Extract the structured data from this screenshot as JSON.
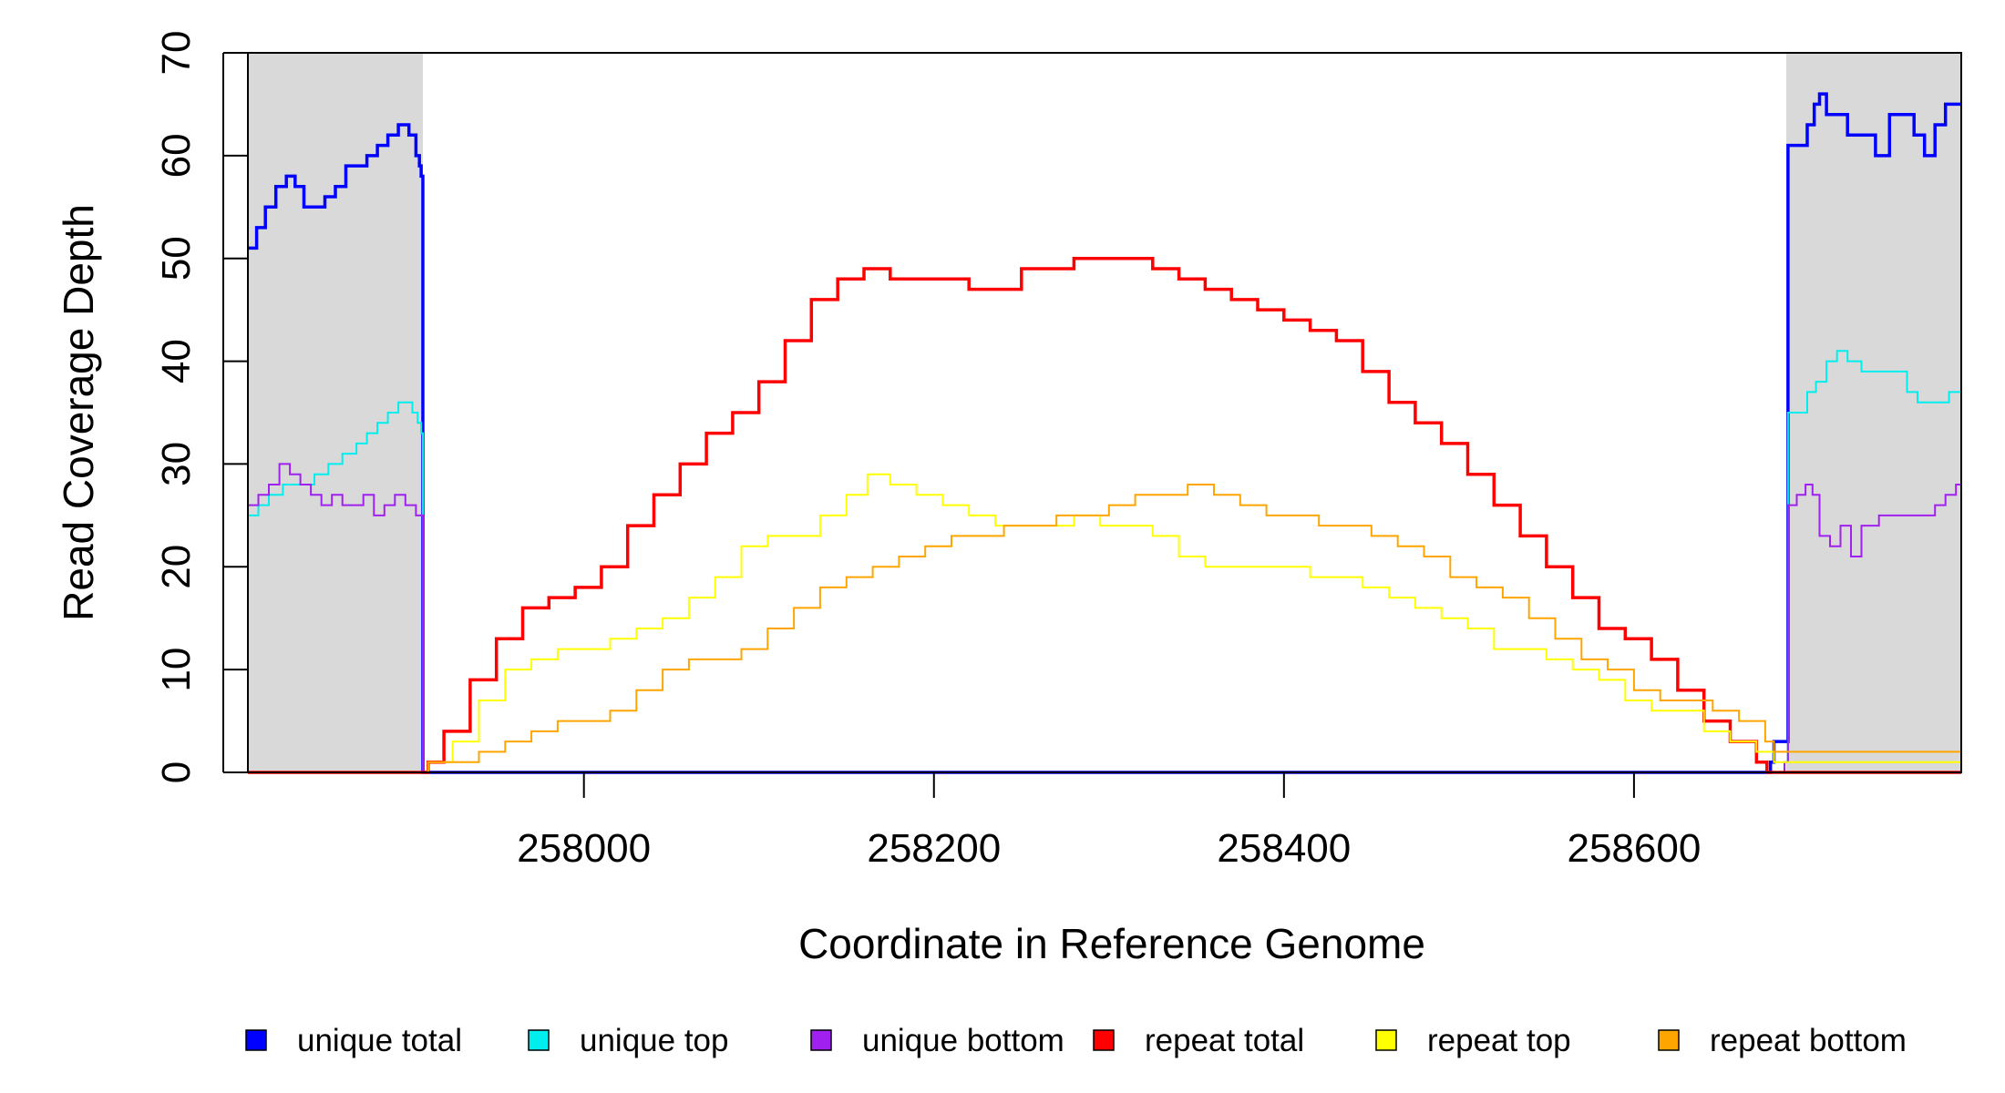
{
  "chart_data": {
    "type": "line",
    "title": "",
    "xlabel": "Coordinate in Reference Genome",
    "ylabel": "Read Coverage Depth",
    "xlim": [
      257808,
      258787
    ],
    "ylim": [
      0,
      70
    ],
    "xticks": [
      258000,
      258200,
      258400,
      258600
    ],
    "xtick_labels": [
      "258000",
      "258200",
      "258400",
      "258600"
    ],
    "yticks": [
      0,
      10,
      20,
      30,
      40,
      50,
      60,
      70
    ],
    "ytick_labels": [
      "0",
      "10",
      "20",
      "30",
      "40",
      "50",
      "60",
      "70"
    ],
    "grid": false,
    "legend_position": "bottom",
    "shaded_regions": [
      {
        "x0": 257808,
        "x1": 257908,
        "color": "#d9d9d9"
      },
      {
        "x0": 258687,
        "x1": 258787,
        "color": "#d9d9d9"
      }
    ],
    "series": [
      {
        "name": "unique total",
        "color": "#0000ff",
        "line_width": 3.5,
        "x": [
          257808,
          257813,
          257818,
          257824,
          257830,
          257835,
          257840,
          257846,
          257852,
          257858,
          257864,
          257870,
          257876,
          257882,
          257888,
          257894,
          257900,
          257904,
          257906,
          257907,
          257908,
          257910,
          258000,
          258200,
          258400,
          258600,
          258676,
          258678,
          258680,
          258686,
          258688,
          258693,
          258699,
          258703,
          258706,
          258710,
          258716,
          258722,
          258730,
          258738,
          258746,
          258752,
          258760,
          258766,
          258772,
          258778,
          258787
        ],
        "y": [
          51,
          53,
          55,
          57,
          58,
          57,
          55,
          55,
          56,
          57,
          59,
          59,
          60,
          61,
          62,
          63,
          62,
          60,
          59,
          58,
          0,
          0,
          0,
          0,
          0,
          0,
          0,
          1,
          3,
          3,
          61,
          61,
          63,
          65,
          66,
          64,
          64,
          62,
          62,
          60,
          64,
          64,
          62,
          60,
          63,
          65,
          65
        ]
      },
      {
        "name": "unique top",
        "color": "#00eeee",
        "line_width": 2,
        "x": [
          257808,
          257814,
          257820,
          257828,
          257838,
          257846,
          257854,
          257862,
          257870,
          257876,
          257882,
          257888,
          257894,
          257898,
          257902,
          257905,
          257907,
          257908,
          257910,
          258600,
          258676,
          258686,
          258688,
          258693,
          258699,
          258704,
          258710,
          258716,
          258722,
          258730,
          258740,
          258750,
          258756,
          258762,
          258768,
          258774,
          258780,
          258787
        ],
        "y": [
          25,
          26,
          27,
          28,
          28,
          29,
          30,
          31,
          32,
          33,
          34,
          35,
          36,
          36,
          35,
          34,
          33,
          0,
          0,
          0,
          0,
          1,
          35,
          35,
          37,
          38,
          40,
          41,
          40,
          39,
          39,
          39,
          37,
          36,
          36,
          36,
          37,
          36
        ]
      },
      {
        "name": "unique bottom",
        "color": "#a020f0",
        "line_width": 2,
        "x": [
          257808,
          257814,
          257820,
          257826,
          257832,
          257838,
          257844,
          257850,
          257856,
          257862,
          257868,
          257874,
          257880,
          257886,
          257892,
          257898,
          257904,
          257907,
          257908,
          257910,
          258600,
          258676,
          258686,
          258688,
          258693,
          258698,
          258702,
          258706,
          258712,
          258718,
          258724,
          258730,
          258740,
          258750,
          258760,
          258766,
          258772,
          258778,
          258784,
          258787
        ],
        "y": [
          26,
          27,
          28,
          30,
          29,
          28,
          27,
          26,
          27,
          26,
          26,
          27,
          25,
          26,
          27,
          26,
          25,
          25,
          0,
          0,
          0,
          0,
          1,
          26,
          27,
          28,
          27,
          23,
          22,
          24,
          21,
          24,
          25,
          25,
          25,
          25,
          26,
          27,
          28,
          29
        ]
      },
      {
        "name": "repeat total",
        "color": "#ff0000",
        "line_width": 3.5,
        "x": [
          257808,
          257908,
          257911,
          257920,
          257935,
          257950,
          257965,
          257980,
          257995,
          258010,
          258025,
          258040,
          258055,
          258070,
          258085,
          258100,
          258115,
          258130,
          258145,
          258160,
          258175,
          258190,
          258205,
          258220,
          258235,
          258250,
          258265,
          258280,
          258295,
          258310,
          258325,
          258340,
          258355,
          258370,
          258385,
          258400,
          258415,
          258430,
          258445,
          258460,
          258475,
          258490,
          258505,
          258520,
          258535,
          258550,
          258565,
          258580,
          258595,
          258610,
          258625,
          258640,
          258655,
          258670,
          258676,
          258680,
          258787
        ],
        "y": [
          0,
          0,
          1,
          4,
          9,
          13,
          16,
          17,
          18,
          20,
          24,
          27,
          30,
          33,
          35,
          38,
          42,
          46,
          48,
          49,
          48,
          48,
          48,
          47,
          47,
          49,
          49,
          50,
          50,
          50,
          49,
          48,
          47,
          46,
          45,
          44,
          43,
          42,
          39,
          36,
          34,
          32,
          29,
          26,
          23,
          20,
          17,
          14,
          13,
          11,
          8,
          5,
          3,
          1,
          0,
          0,
          0
        ]
      },
      {
        "name": "repeat top",
        "color": "#ffff00",
        "line_width": 2,
        "x": [
          257808,
          257908,
          257911,
          257925,
          257940,
          257955,
          257970,
          257985,
          258000,
          258015,
          258030,
          258045,
          258060,
          258075,
          258090,
          258105,
          258120,
          258135,
          258150,
          258162,
          258175,
          258190,
          258205,
          258220,
          258235,
          258250,
          258265,
          258280,
          258295,
          258310,
          258325,
          258340,
          258355,
          258370,
          258385,
          258400,
          258415,
          258430,
          258445,
          258460,
          258475,
          258490,
          258505,
          258520,
          258535,
          258550,
          258565,
          258580,
          258595,
          258610,
          258625,
          258640,
          258655,
          258670,
          258680,
          258787
        ],
        "y": [
          0,
          0,
          1,
          3,
          7,
          10,
          11,
          12,
          12,
          13,
          14,
          15,
          17,
          19,
          22,
          23,
          23,
          25,
          27,
          29,
          28,
          27,
          26,
          25,
          24,
          24,
          24,
          25,
          24,
          24,
          23,
          21,
          20,
          20,
          20,
          20,
          19,
          19,
          18,
          17,
          16,
          15,
          14,
          12,
          12,
          11,
          10,
          9,
          7,
          6,
          6,
          4,
          3,
          2,
          1,
          0
        ]
      },
      {
        "name": "repeat bottom",
        "color": "#ffa500",
        "line_width": 2,
        "x": [
          257808,
          257908,
          257911,
          257925,
          257940,
          257955,
          257970,
          257985,
          258000,
          258015,
          258030,
          258045,
          258060,
          258075,
          258090,
          258105,
          258120,
          258135,
          258150,
          258165,
          258180,
          258195,
          258210,
          258225,
          258240,
          258255,
          258270,
          258285,
          258300,
          258315,
          258330,
          258345,
          258360,
          258375,
          258390,
          258405,
          258420,
          258435,
          258450,
          258465,
          258480,
          258495,
          258510,
          258525,
          258540,
          258555,
          258570,
          258585,
          258600,
          258615,
          258630,
          258645,
          258660,
          258675,
          258680,
          258787
        ],
        "y": [
          0,
          0,
          1,
          1,
          2,
          3,
          4,
          5,
          5,
          6,
          8,
          10,
          11,
          11,
          12,
          14,
          16,
          18,
          19,
          20,
          21,
          22,
          23,
          23,
          24,
          24,
          25,
          25,
          26,
          27,
          27,
          28,
          27,
          26,
          25,
          25,
          24,
          24,
          23,
          22,
          21,
          19,
          18,
          17,
          15,
          13,
          11,
          10,
          8,
          7,
          7,
          6,
          5,
          3,
          2,
          0
        ]
      }
    ]
  }
}
